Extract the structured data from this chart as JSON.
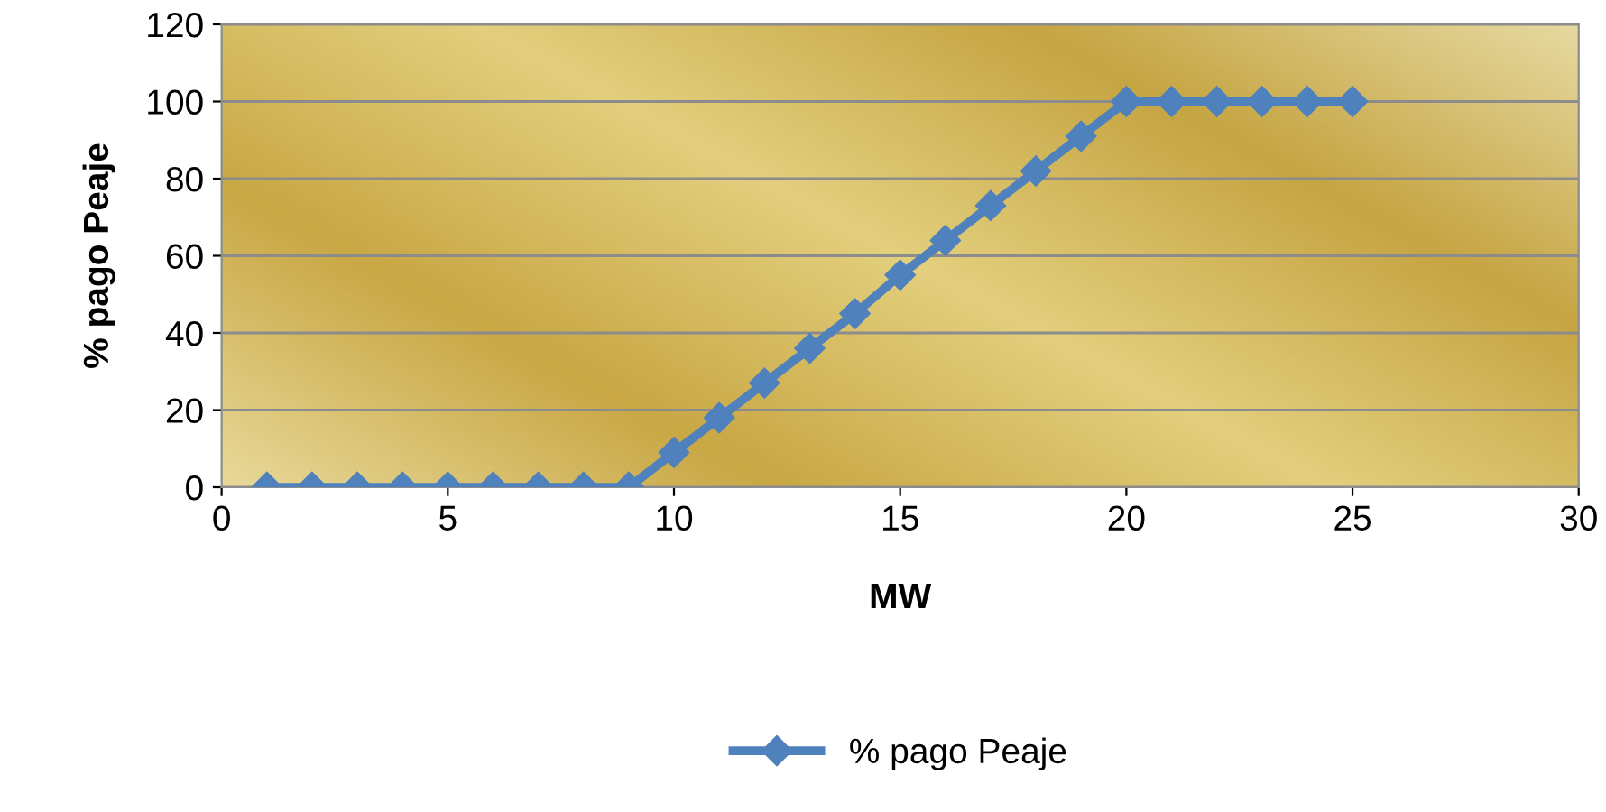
{
  "chart_data": {
    "type": "line",
    "xlabel": "MW",
    "ylabel": "% pago Peaje",
    "x": [
      1,
      2,
      3,
      4,
      5,
      6,
      7,
      8,
      9,
      10,
      11,
      12,
      13,
      14,
      15,
      16,
      17,
      18,
      19,
      20,
      21,
      22,
      23,
      24,
      25
    ],
    "series": [
      {
        "name": "% pago Peaje",
        "color": "#4f81bd",
        "values": [
          0,
          0,
          0,
          0,
          0,
          0,
          0,
          0,
          0,
          9,
          18,
          27,
          36,
          45,
          55,
          64,
          73,
          82,
          91,
          100,
          100,
          100,
          100,
          100,
          100
        ]
      }
    ],
    "xlim": [
      0,
      30
    ],
    "xticks": [
      0,
      5,
      10,
      15,
      20,
      25,
      30
    ],
    "ylim": [
      0,
      120
    ],
    "yticks": [
      0,
      20,
      40,
      60,
      80,
      100,
      120
    ],
    "grid": "y",
    "legend": "bottom",
    "marker": "diamond",
    "line_style": "solid"
  }
}
